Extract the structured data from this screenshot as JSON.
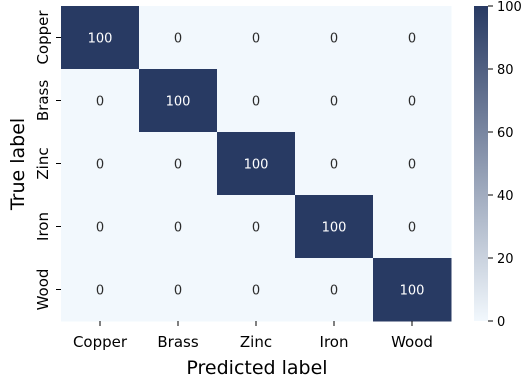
{
  "chart_data": {
    "type": "heatmap",
    "xlabel": "Predicted label",
    "ylabel": "True label",
    "x_categories": [
      "Copper",
      "Brass",
      "Zinc",
      "Iron",
      "Wood"
    ],
    "y_categories": [
      "Copper",
      "Brass",
      "Zinc",
      "Iron",
      "Wood"
    ],
    "values": [
      [
        100,
        0,
        0,
        0,
        0
      ],
      [
        0,
        100,
        0,
        0,
        0
      ],
      [
        0,
        0,
        100,
        0,
        0
      ],
      [
        0,
        0,
        0,
        100,
        0
      ],
      [
        0,
        0,
        0,
        0,
        100
      ]
    ],
    "colorbar": {
      "min": 0,
      "max": 100,
      "ticks": [
        0,
        20,
        40,
        60,
        80,
        100
      ]
    },
    "colors": {
      "low": "#f2f8fd",
      "high": "#283a63",
      "text_on_dark": "#ffffff",
      "text_on_light": "#2b2b2b"
    },
    "grid": false
  }
}
